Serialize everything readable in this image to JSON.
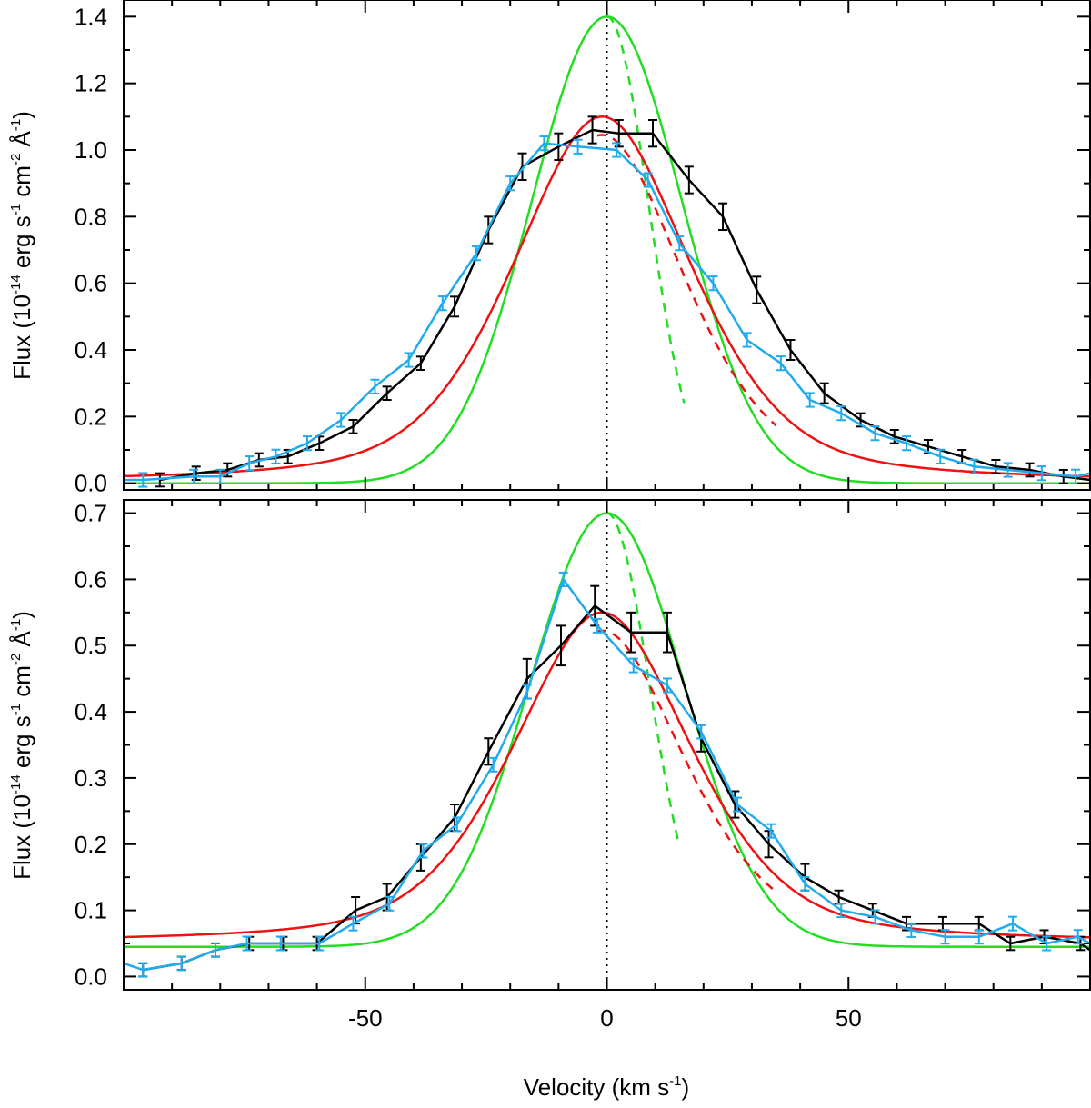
{
  "chart_data": [
    {
      "type": "line",
      "panel": "top",
      "ylabel": {
        "base": "Flux (10",
        "exp1": "-14",
        "mid1": " erg s",
        "exp2": "-1",
        "mid2": " cm",
        "exp3": "-2",
        "mid3": " Å",
        "exp4": "-1",
        "end": ")"
      },
      "xlim": [
        -100,
        100
      ],
      "ylim": [
        -0.02,
        1.45
      ],
      "yticks": [
        0.0,
        0.2,
        0.4,
        0.6,
        0.8,
        1.0,
        1.2,
        1.4
      ],
      "yticklabels": [
        "0.0",
        "0.2",
        "0.4",
        "0.6",
        "0.8",
        "1.0",
        "1.2",
        "1.4"
      ],
      "zero_line": {
        "x": 0,
        "style": "dotted"
      },
      "models": {
        "green": {
          "color": "#22dd22",
          "peak": 1.4,
          "center": 0,
          "sigma": 15.5,
          "baseline": 0.0
        },
        "green_dashed": {
          "color": "#22dd22",
          "style": "dashed",
          "x_start": 0,
          "x_end": 16
        },
        "red": {
          "color": "#ee1111",
          "peak": 1.1,
          "center": -1,
          "sigma": 19,
          "baseline": 0.0
        },
        "red_dashed": {
          "color": "#ee1111",
          "style": "dashed",
          "x_start": -2,
          "x_end": 35
        }
      },
      "series": [
        {
          "color": "#000000",
          "x": [
            -92.5,
            -85,
            -78.5,
            -72,
            -66,
            -59.5,
            -52.5,
            -45.5,
            -38.5,
            -31.5,
            -24.5,
            -17.5,
            -10,
            -3,
            2.5,
            9.5,
            17,
            24,
            31,
            38,
            45,
            52.5,
            59.5,
            66.5,
            73.5,
            80.5,
            87.5,
            94.5,
            100
          ],
          "y": [
            0.01,
            0.03,
            0.04,
            0.07,
            0.08,
            0.12,
            0.17,
            0.27,
            0.36,
            0.53,
            0.76,
            0.95,
            1.01,
            1.06,
            1.05,
            1.05,
            0.91,
            0.8,
            0.58,
            0.4,
            0.27,
            0.19,
            0.14,
            0.11,
            0.08,
            0.05,
            0.04,
            0.02,
            0.01
          ],
          "err": [
            0.02,
            0.02,
            0.02,
            0.02,
            0.02,
            0.02,
            0.02,
            0.02,
            0.02,
            0.03,
            0.04,
            0.04,
            0.04,
            0.04,
            0.04,
            0.04,
            0.04,
            0.04,
            0.04,
            0.03,
            0.03,
            0.02,
            0.02,
            0.02,
            0.02,
            0.02,
            0.02,
            0.02,
            0.02
          ]
        },
        {
          "color": "#22aaee",
          "x": [
            -100,
            -96,
            -85.5,
            -80,
            -74,
            -68.5,
            -62,
            -55,
            -48,
            -41,
            -34,
            -27,
            -20,
            -13,
            -6,
            2,
            8.5,
            15,
            22,
            29,
            36,
            42,
            48.5,
            55.5,
            62,
            69,
            76,
            83,
            90,
            97,
            100
          ],
          "y": [
            0.01,
            0.01,
            0.02,
            0.02,
            0.06,
            0.08,
            0.12,
            0.19,
            0.29,
            0.37,
            0.54,
            0.69,
            0.9,
            1.02,
            1.01,
            1.0,
            0.91,
            0.72,
            0.6,
            0.43,
            0.36,
            0.25,
            0.21,
            0.15,
            0.12,
            0.08,
            0.05,
            0.04,
            0.03,
            0.02,
            0.03
          ]
        }
      ]
    },
    {
      "type": "line",
      "panel": "bottom",
      "xlabel": {
        "base": "Velocity (km s",
        "exp": "-1",
        "end": ")"
      },
      "ylabel": {
        "base": "Flux (10",
        "exp1": "-14",
        "mid1": " erg s",
        "exp2": "-1",
        "mid2": " cm",
        "exp3": "-2",
        "mid3": " Å",
        "exp4": "-1",
        "end": ")"
      },
      "xlim": [
        -100,
        100
      ],
      "ylim": [
        -0.02,
        0.72
      ],
      "xticks": [
        -50,
        0,
        50
      ],
      "xticklabels": [
        "-50",
        "0",
        "50"
      ],
      "yticks": [
        0.0,
        0.1,
        0.2,
        0.3,
        0.4,
        0.5,
        0.6,
        0.7
      ],
      "yticklabels": [
        "0.0",
        "0.1",
        "0.2",
        "0.3",
        "0.4",
        "0.5",
        "0.6",
        "0.7"
      ],
      "zero_line": {
        "x": 0,
        "style": "dotted"
      },
      "models": {
        "green": {
          "color": "#22dd22",
          "peak": 0.7,
          "center": 0,
          "sigma": 16,
          "baseline": 0.045
        },
        "green_dashed": {
          "color": "#22dd22",
          "style": "dashed",
          "x_start": 0,
          "x_end": 15
        },
        "red": {
          "color": "#ee1111",
          "peak": 0.55,
          "center": -1,
          "sigma": 19,
          "baseline": 0.05
        },
        "red_dashed": {
          "color": "#ee1111",
          "style": "dashed",
          "x_start": -2,
          "x_end": 35
        }
      },
      "series": [
        {
          "color": "#000000",
          "x": [
            -96,
            -88,
            -81,
            -74,
            -67,
            -60,
            -52,
            -45.5,
            -38.5,
            -31.5,
            -24.5,
            -16.5,
            -9.5,
            -2.5,
            5,
            12.5,
            19.5,
            26.5,
            33.5,
            41,
            48,
            55,
            62,
            69.5,
            77,
            83.5,
            90.5,
            98,
            100
          ],
          "y": [
            0.01,
            0.02,
            0.04,
            0.05,
            0.05,
            0.05,
            0.1,
            0.12,
            0.18,
            0.24,
            0.34,
            0.45,
            0.5,
            0.56,
            0.52,
            0.52,
            0.36,
            0.26,
            0.2,
            0.15,
            0.12,
            0.1,
            0.08,
            0.08,
            0.08,
            0.05,
            0.06,
            0.05,
            0.04
          ],
          "err": [
            0.01,
            0.01,
            0.01,
            0.01,
            0.01,
            0.01,
            0.02,
            0.02,
            0.02,
            0.02,
            0.02,
            0.03,
            0.03,
            0.03,
            0.03,
            0.03,
            0.02,
            0.02,
            0.02,
            0.02,
            0.01,
            0.01,
            0.01,
            0.01,
            0.01,
            0.01,
            0.01,
            0.01,
            0.01
          ]
        },
        {
          "color": "#22aaee",
          "x": [
            -100,
            -96,
            -88,
            -81,
            -74.5,
            -67.5,
            -59.5,
            -52.5,
            -45,
            -38,
            -31,
            -23.5,
            -16.5,
            -9,
            -2,
            5.5,
            12.5,
            19.5,
            27,
            34,
            41,
            48.5,
            55.5,
            63,
            70,
            77,
            84,
            91,
            97.5,
            100
          ],
          "y": [
            0.02,
            0.01,
            0.02,
            0.04,
            0.05,
            0.05,
            0.05,
            0.08,
            0.11,
            0.19,
            0.23,
            0.32,
            0.43,
            0.6,
            0.53,
            0.47,
            0.44,
            0.37,
            0.26,
            0.22,
            0.14,
            0.1,
            0.09,
            0.07,
            0.06,
            0.06,
            0.08,
            0.05,
            0.06,
            0.05
          ]
        }
      ]
    }
  ]
}
